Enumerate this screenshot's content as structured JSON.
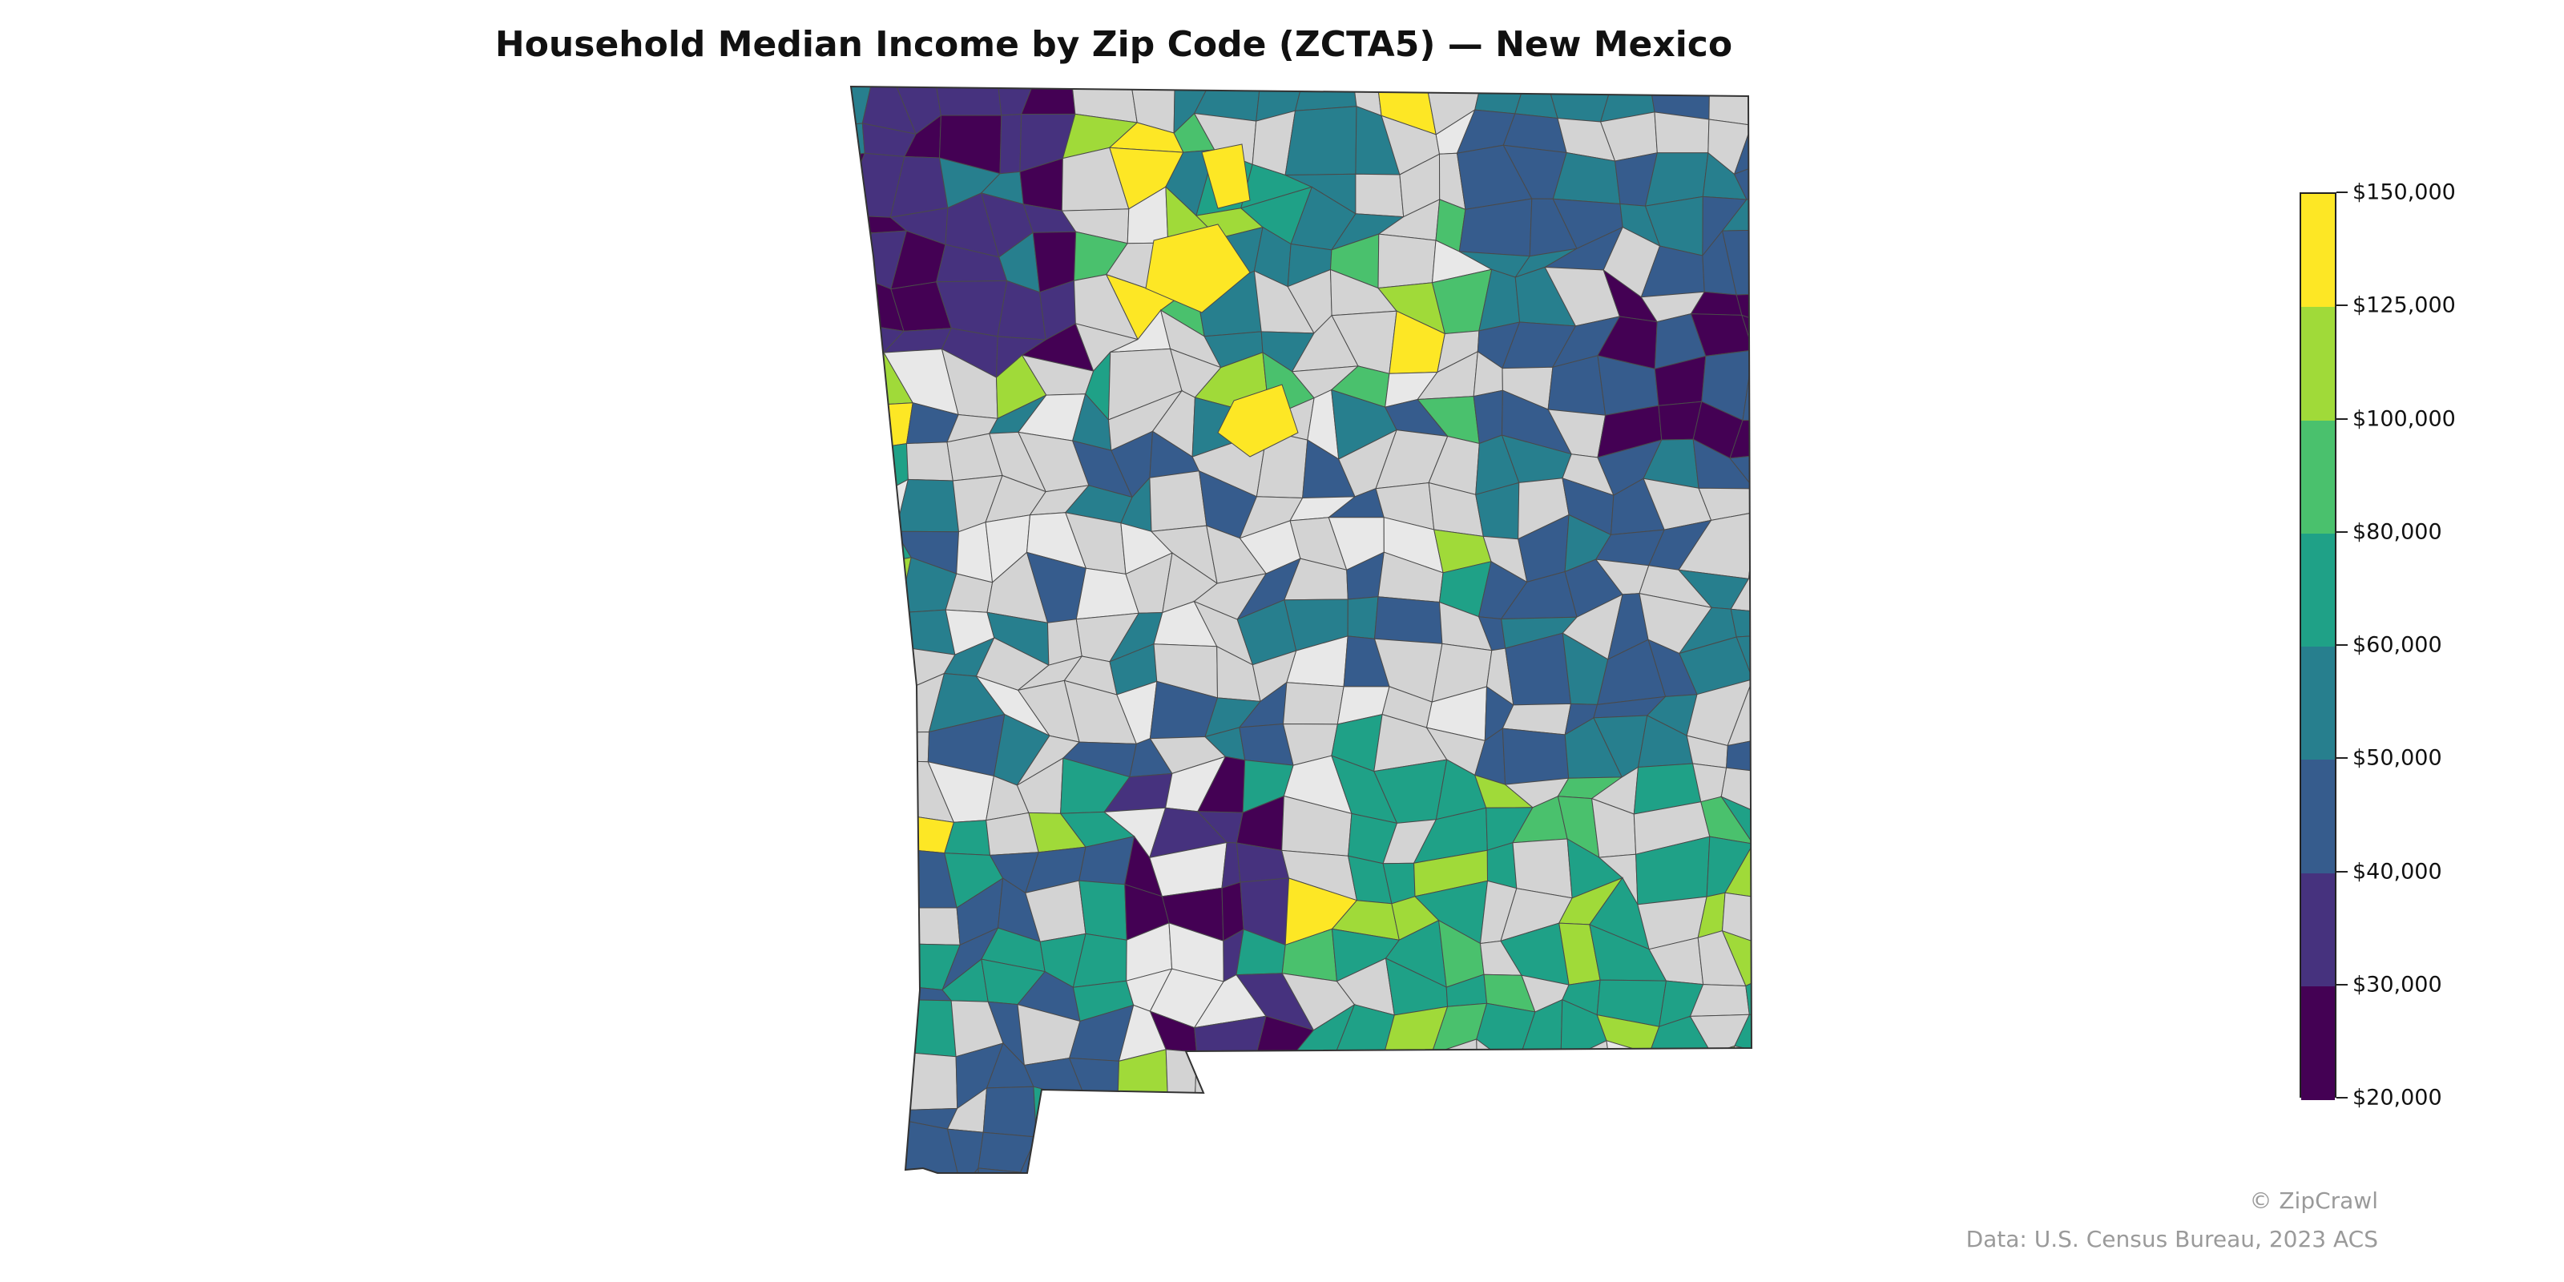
{
  "title": "Household Median Income by Zip Code (ZCTA5) — New Mexico",
  "legend": {
    "ticks": [
      "$150,000",
      "$125,000",
      "$100,000",
      "$80,000",
      "$60,000",
      "$50,000",
      "$40,000",
      "$30,000",
      "$20,000"
    ],
    "bins": [
      {
        "min": 125000,
        "max": 150000,
        "color": "#fde725"
      },
      {
        "min": 100000,
        "max": 125000,
        "color": "#a0da39"
      },
      {
        "min": 80000,
        "max": 100000,
        "color": "#4ac16d"
      },
      {
        "min": 60000,
        "max": 80000,
        "color": "#1fa187"
      },
      {
        "min": 50000,
        "max": 60000,
        "color": "#277f8e"
      },
      {
        "min": 40000,
        "max": 50000,
        "color": "#365c8d"
      },
      {
        "min": 30000,
        "max": 40000,
        "color": "#46327e"
      },
      {
        "min": 20000,
        "max": 30000,
        "color": "#440154"
      }
    ]
  },
  "no_data_colors": [
    "#d3d3d3",
    "#e8e8e8"
  ],
  "credits": {
    "brand": "© ZipCrawl",
    "source": "Data: U.S. Census Bureau, 2023 ACS"
  }
}
